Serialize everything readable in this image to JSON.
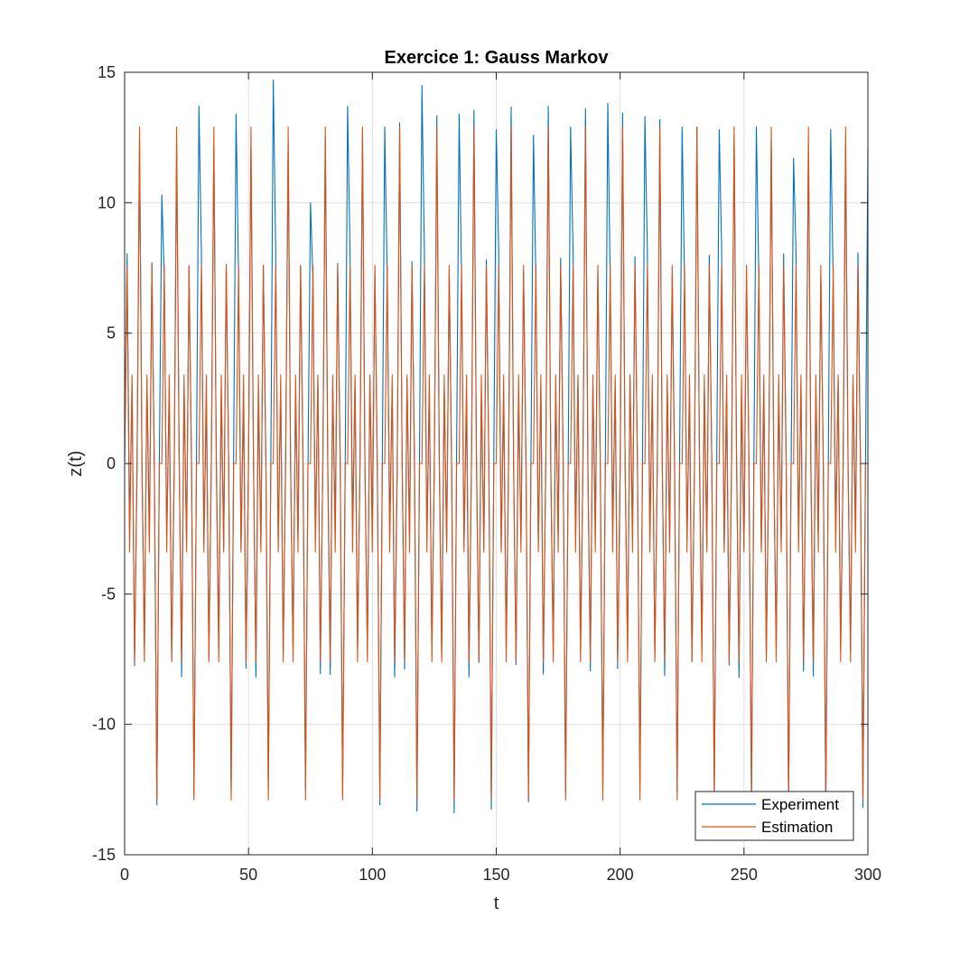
{
  "chart_data": {
    "type": "line",
    "title": "Exercice 1: Gauss Markov",
    "xlabel": "t",
    "ylabel": "z(t)",
    "xlim": [
      0,
      300
    ],
    "ylim": [
      -15,
      15
    ],
    "xticks": [
      0,
      50,
      100,
      150,
      200,
      250,
      300
    ],
    "yticks": [
      -15,
      -10,
      -5,
      0,
      5,
      10,
      15
    ],
    "xtick_labels": [
      "0",
      "50",
      "100",
      "150",
      "200",
      "250",
      "300"
    ],
    "ytick_labels": [
      "-15",
      "-10",
      "-5",
      "0",
      "5",
      "10",
      "15"
    ],
    "grid": true,
    "legend_position": "bottom-right",
    "estimation_period": 15,
    "estimation_cycle": [
      0,
      7.6,
      -3.4,
      3.4,
      -7.6,
      0,
      12.9,
      0,
      -7.6,
      3.4,
      -3.4,
      7.6,
      0,
      -12.9,
      0
    ],
    "experiment_peaks": [
      [
        15,
        10.3
      ],
      [
        30,
        13.7
      ],
      [
        45,
        13.4
      ],
      [
        60,
        14.7
      ],
      [
        75,
        10
      ],
      [
        90,
        13.7
      ],
      [
        105,
        12.9
      ],
      [
        120,
        14.5
      ],
      [
        135,
        13.4
      ],
      [
        150,
        12.8
      ],
      [
        165,
        12.6
      ],
      [
        180,
        12.9
      ],
      [
        195,
        13.8
      ],
      [
        210,
        13.3
      ],
      [
        225,
        12.9
      ],
      [
        240,
        12.8
      ],
      [
        255,
        12.9
      ],
      [
        270,
        11.7
      ],
      [
        285,
        12.8
      ],
      [
        300,
        12.1
      ]
    ],
    "series": [
      {
        "name": "Experiment",
        "color": "#0072BD"
      },
      {
        "name": "Estimation",
        "color": "#D95319"
      }
    ]
  }
}
